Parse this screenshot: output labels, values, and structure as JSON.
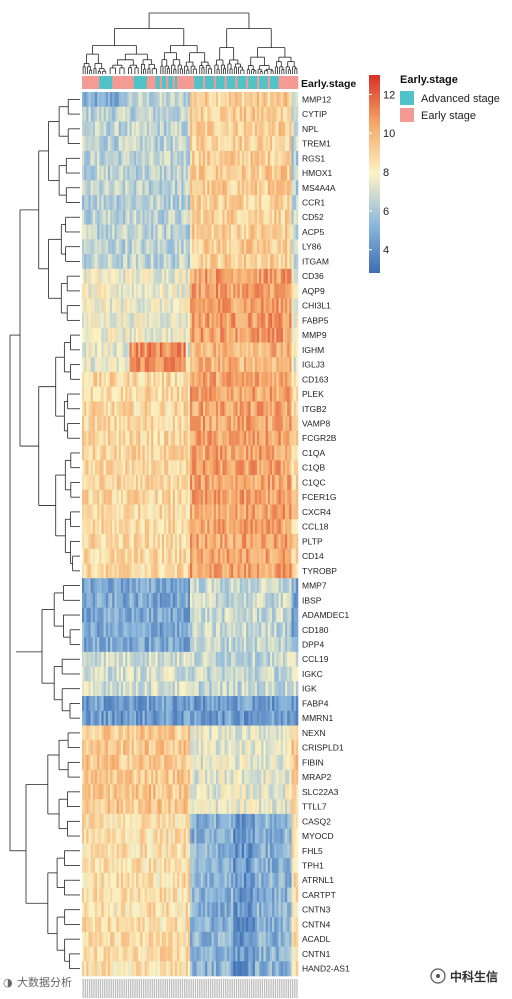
{
  "chart_data": {
    "type": "heatmap",
    "genes": [
      "MMP12",
      "CYTIP",
      "NPL",
      "TREM1",
      "RGS1",
      "HMOX1",
      "MS4A4A",
      "CCR1",
      "CD52",
      "ACP5",
      "LY86",
      "ITGAM",
      "CD36",
      "AQP9",
      "CHI3L1",
      "FABP5",
      "MMP9",
      "IGHM",
      "IGLJ3",
      "CD163",
      "PLEK",
      "ITGB2",
      "VAMP8",
      "FCGR2B",
      "C1QA",
      "C1QB",
      "C1QC",
      "FCER1G",
      "CXCR4",
      "CCL18",
      "PLTP",
      "CD14",
      "TYROBP",
      "MMP7",
      "IBSP",
      "ADAMDEC1",
      "CD180",
      "DPP4",
      "CCL19",
      "IGKC",
      "IGK",
      "FABP4",
      "MMRN1",
      "NEXN",
      "CRISPLD1",
      "FIBIN",
      "MRAP2",
      "SLC22A3",
      "TTLL7",
      "CASQ2",
      "MYOCD",
      "FHL5",
      "TPH1",
      "ATRNL1",
      "CARTPT",
      "CNTN3",
      "CNTN4",
      "ACADL",
      "CNTN1",
      "HAND2-AS1"
    ],
    "colorbar": {
      "min": 2.8,
      "max": 13,
      "ticks": [
        4,
        6,
        8,
        10,
        12
      ],
      "colors": [
        "#3b6db3",
        "#fbf3c4",
        "#d73027"
      ]
    },
    "annotation_track": {
      "name": "Early.stage",
      "legend_title": "Early.stage",
      "levels": [
        {
          "label": "Advanced stage",
          "color": "#4fc3c8"
        },
        {
          "label": "Early stage",
          "color": "#f39a94"
        }
      ]
    },
    "column_dendrogram": true,
    "row_dendrogram": true
  },
  "watermarks": {
    "left": "大数据分析",
    "right": "中科生信"
  }
}
